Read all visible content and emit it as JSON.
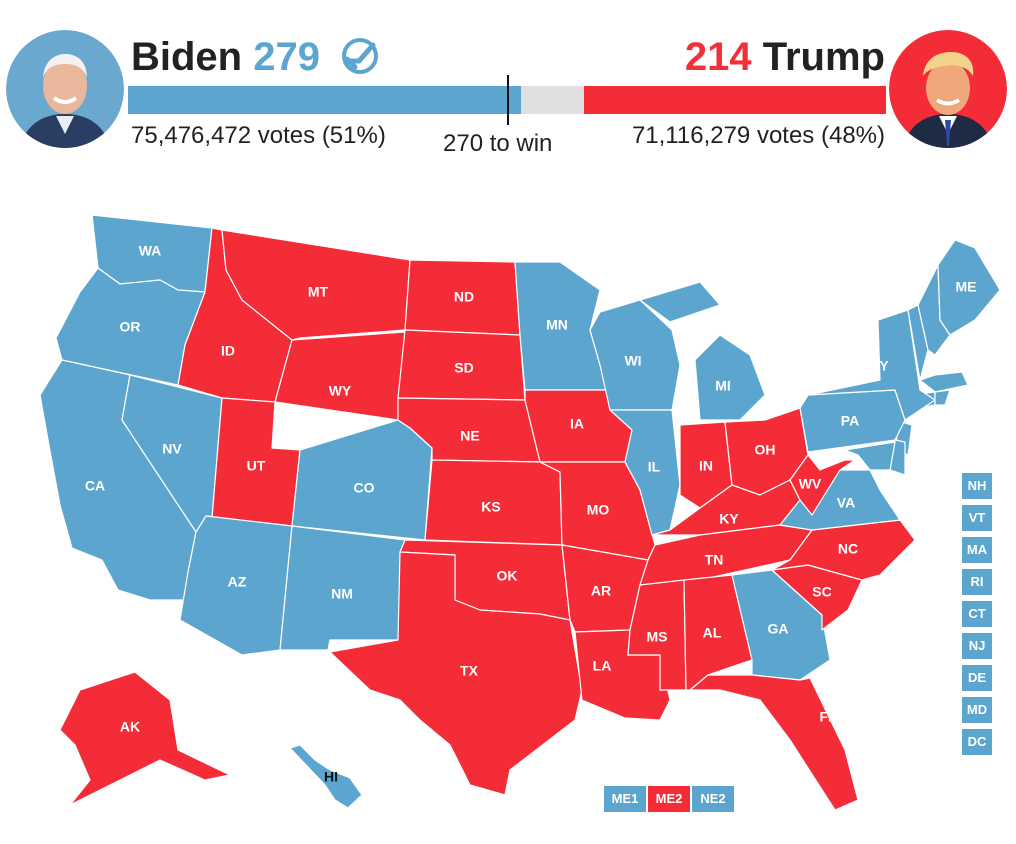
{
  "colors": {
    "dem": "#5ca5cf",
    "rep": "#f42c38",
    "neutral": "#e0e0e0"
  },
  "left_candidate": {
    "name": "Biden",
    "electoral_votes": "279",
    "votes_text": "75,476,472 votes (51%)",
    "winner_icon": "check-circle-icon"
  },
  "right_candidate": {
    "name": "Trump",
    "electoral_votes": "214",
    "votes_text": "71,116,279 votes (48%)"
  },
  "threshold_label": "270 to win",
  "bar": {
    "dem_ev": 279,
    "rep_ev": 214,
    "total": 538,
    "threshold": 270
  },
  "states": [
    {
      "abbr": "WA",
      "winner": "dem"
    },
    {
      "abbr": "OR",
      "winner": "dem"
    },
    {
      "abbr": "CA",
      "winner": "dem"
    },
    {
      "abbr": "NV",
      "winner": "dem"
    },
    {
      "abbr": "ID",
      "winner": "rep"
    },
    {
      "abbr": "MT",
      "winner": "rep"
    },
    {
      "abbr": "WY",
      "winner": "rep"
    },
    {
      "abbr": "UT",
      "winner": "rep"
    },
    {
      "abbr": "CO",
      "winner": "dem"
    },
    {
      "abbr": "AZ",
      "winner": "dem"
    },
    {
      "abbr": "NM",
      "winner": "dem"
    },
    {
      "abbr": "ND",
      "winner": "rep"
    },
    {
      "abbr": "SD",
      "winner": "rep"
    },
    {
      "abbr": "NE",
      "winner": "rep"
    },
    {
      "abbr": "KS",
      "winner": "rep"
    },
    {
      "abbr": "OK",
      "winner": "rep"
    },
    {
      "abbr": "TX",
      "winner": "rep"
    },
    {
      "abbr": "MN",
      "winner": "dem"
    },
    {
      "abbr": "IA",
      "winner": "rep"
    },
    {
      "abbr": "MO",
      "winner": "rep"
    },
    {
      "abbr": "AR",
      "winner": "rep"
    },
    {
      "abbr": "LA",
      "winner": "rep"
    },
    {
      "abbr": "WI",
      "winner": "dem"
    },
    {
      "abbr": "IL",
      "winner": "dem"
    },
    {
      "abbr": "MI",
      "winner": "dem"
    },
    {
      "abbr": "IN",
      "winner": "rep"
    },
    {
      "abbr": "OH",
      "winner": "rep"
    },
    {
      "abbr": "KY",
      "winner": "rep"
    },
    {
      "abbr": "TN",
      "winner": "rep"
    },
    {
      "abbr": "MS",
      "winner": "rep"
    },
    {
      "abbr": "AL",
      "winner": "rep"
    },
    {
      "abbr": "GA",
      "winner": "dem"
    },
    {
      "abbr": "FL",
      "winner": "rep"
    },
    {
      "abbr": "SC",
      "winner": "rep"
    },
    {
      "abbr": "NC",
      "winner": "rep"
    },
    {
      "abbr": "VA",
      "winner": "dem"
    },
    {
      "abbr": "WV",
      "winner": "rep"
    },
    {
      "abbr": "PA",
      "winner": "dem"
    },
    {
      "abbr": "NY",
      "winner": "dem"
    },
    {
      "abbr": "ME",
      "winner": "dem"
    },
    {
      "abbr": "AK",
      "winner": "rep"
    },
    {
      "abbr": "HI",
      "winner": "dem"
    }
  ],
  "small_states": [
    {
      "abbr": "NH",
      "winner": "dem"
    },
    {
      "abbr": "VT",
      "winner": "dem"
    },
    {
      "abbr": "MA",
      "winner": "dem"
    },
    {
      "abbr": "RI",
      "winner": "dem"
    },
    {
      "abbr": "CT",
      "winner": "dem"
    },
    {
      "abbr": "NJ",
      "winner": "dem"
    },
    {
      "abbr": "DE",
      "winner": "dem"
    },
    {
      "abbr": "MD",
      "winner": "dem"
    },
    {
      "abbr": "DC",
      "winner": "dem"
    }
  ],
  "districts": [
    {
      "abbr": "ME1",
      "winner": "dem"
    },
    {
      "abbr": "ME2",
      "winner": "rep"
    },
    {
      "abbr": "NE2",
      "winner": "dem"
    }
  ]
}
